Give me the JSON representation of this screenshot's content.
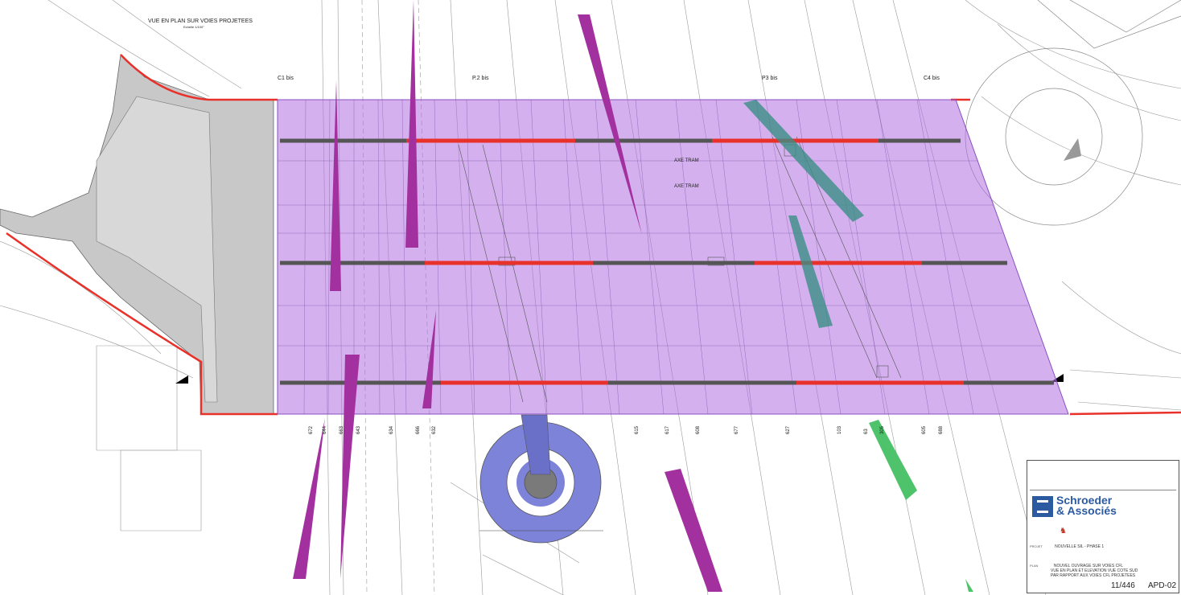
{
  "drawing": {
    "title": "VUE EN PLAN SUR VOIES PROJETEES",
    "scale": "Echelle 1/100°",
    "sections": [
      "C1 bis",
      "P.2 bis",
      "P3 bis",
      "C4 bis"
    ],
    "axis_labels": [
      "AXE TRAM",
      "AXE TRAM"
    ],
    "bottom_numbers": [
      "672",
      "644",
      "663",
      "643",
      "634",
      "666",
      "632",
      "615",
      "617",
      "608",
      "677",
      "627",
      "103",
      "63",
      "305",
      "605",
      "688"
    ]
  },
  "colors": {
    "deck": "#b06fe0",
    "deck_fill_opacity": 0.55,
    "pier_gray": "#c8c8c8",
    "rail_red": "#e8312a",
    "rail_dark": "#555555",
    "magenta_wedge": "#a3309f",
    "green_wedge": "#4fc36b",
    "teal_wedge": "#3a8f86",
    "circle_blue": "#7d83d9",
    "brand_blue": "#2c5aa0"
  },
  "title_block": {
    "company_line1": "Schroeder",
    "company_line2": "& Associés",
    "project_label": "PROJET",
    "project_text": "NOUVELLE SIL - PHASE 1",
    "plan_label": "PLAN",
    "plan_text": "NOUVEL OUVRAGE SUR VOIES CFL",
    "plan_text2": "VUE EN PLAN ET ELEVATION VUE COTE SUD",
    "plan_text3": "PAR RAPPORT AUX VOIES CFL PROJETEES",
    "sheet_number": "11/446",
    "drawing_code": "APD-02"
  }
}
